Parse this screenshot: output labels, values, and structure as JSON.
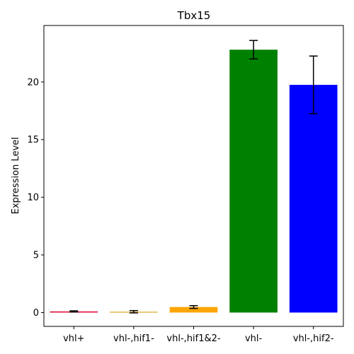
{
  "chart_data": {
    "type": "bar",
    "title": "Tbx15",
    "xlabel": "",
    "ylabel": "Expression Level",
    "categories": [
      "vhl+",
      "vhl-,hif1-",
      "vhl-,hif1&2-",
      "vhl-",
      "vhl-,hif2-"
    ],
    "values": [
      0.1,
      0.07,
      0.48,
      22.8,
      19.75
    ],
    "errors": [
      0.05,
      0.1,
      0.12,
      0.8,
      2.5
    ],
    "colors": [
      "#dc143c",
      "#daa520",
      "#ffa500",
      "#008000",
      "#0000ff"
    ],
    "ylim": [
      -1.2,
      24.9
    ],
    "yticks": [
      0,
      5,
      10,
      15,
      20
    ],
    "grid": false,
    "legend": "none"
  }
}
